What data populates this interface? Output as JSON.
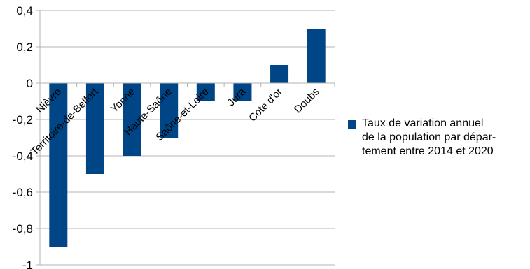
{
  "chart_data": {
    "type": "bar",
    "categories": [
      "Nièvre",
      "Territoire-de-Belfort",
      "Yonne",
      "Haute-Saône",
      "Saône-et-Loire",
      "Jura",
      "Cote d'or",
      "Doubs"
    ],
    "series": [
      {
        "name": "Taux de variation annuel\nde la population par dépar-\ntement entre 2014 et 2020",
        "values": [
          -0.9,
          -0.5,
          -0.4,
          -0.3,
          -0.1,
          -0.1,
          0.1,
          0.3
        ]
      }
    ],
    "ylim": [
      -1,
      0.4
    ],
    "yticks": [
      -1,
      -0.8,
      -0.6,
      -0.4,
      -0.2,
      0,
      0.2,
      0.4
    ],
    "ytick_labels": [
      "-1",
      "-0,8",
      "-0,6",
      "-0,4",
      "-0,2",
      "0",
      "0,2",
      "0,4"
    ],
    "grid": true,
    "legend_position": "right",
    "bar_color": "#004586",
    "grid_color": "#b3b3b3",
    "title": "",
    "xlabel": "",
    "ylabel": ""
  }
}
